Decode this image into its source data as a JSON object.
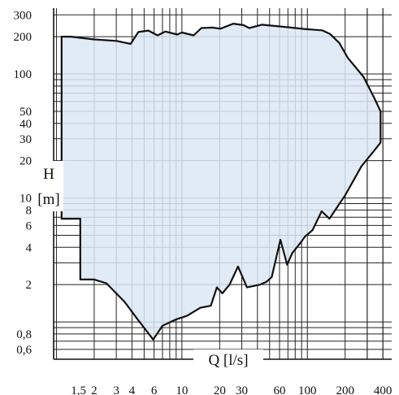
{
  "chart_data": {
    "type": "area",
    "x_scale": "log",
    "y_scale": "log",
    "xlabel": "Q [l/s]",
    "ylabel_top": "H",
    "ylabel_bottom": "[m]",
    "xlim": [
      0.95,
      470
    ],
    "ylim": [
      0.5,
      340
    ],
    "grid": true,
    "x_ticks": [
      {
        "value": 1.5,
        "label": "1,5"
      },
      {
        "value": 2,
        "label": "2"
      },
      {
        "value": 3,
        "label": "3"
      },
      {
        "value": 4,
        "label": "4"
      },
      {
        "value": 6,
        "label": "6"
      },
      {
        "value": 10,
        "label": "10"
      },
      {
        "value": 20,
        "label": "20"
      },
      {
        "value": 30,
        "label": "30"
      },
      {
        "value": 60,
        "label": "60"
      },
      {
        "value": 100,
        "label": "100"
      },
      {
        "value": 200,
        "label": "200"
      },
      {
        "value": 400,
        "label": "400"
      }
    ],
    "y_ticks": [
      {
        "value": 300,
        "label": "300"
      },
      {
        "value": 200,
        "label": "200"
      },
      {
        "value": 100,
        "label": "100"
      },
      {
        "value": 50,
        "label": "50"
      },
      {
        "value": 40,
        "label": "40"
      },
      {
        "value": 30,
        "label": "30"
      },
      {
        "value": 20,
        "label": "20"
      },
      {
        "value": 10,
        "label": "10"
      },
      {
        "value": 8,
        "label": "8"
      },
      {
        "value": 6,
        "label": "6"
      },
      {
        "value": 4,
        "label": "4"
      },
      {
        "value": 2,
        "label": "2"
      },
      {
        "value": 0.8,
        "label": "0,8"
      },
      {
        "value": 0.6,
        "label": "0,6"
      }
    ],
    "envelope": [
      [
        1.1,
        200
      ],
      [
        1.3,
        200
      ],
      [
        2,
        190
      ],
      [
        3,
        185
      ],
      [
        3.9,
        175
      ],
      [
        4.5,
        218
      ],
      [
        5.4,
        224
      ],
      [
        6.4,
        205
      ],
      [
        7.4,
        220
      ],
      [
        9.2,
        208
      ],
      [
        10,
        216
      ],
      [
        12.4,
        205
      ],
      [
        14.3,
        235
      ],
      [
        17.4,
        237
      ],
      [
        20.3,
        232
      ],
      [
        25.7,
        255
      ],
      [
        30.9,
        248
      ],
      [
        34.4,
        235
      ],
      [
        43.4,
        250
      ],
      [
        66,
        240
      ],
      [
        98,
        230
      ],
      [
        131,
        225
      ],
      [
        152,
        210
      ],
      [
        180,
        178
      ],
      [
        210,
        135
      ],
      [
        280,
        95
      ],
      [
        339,
        65
      ],
      [
        383,
        50
      ],
      [
        383,
        28
      ],
      [
        340,
        24
      ],
      [
        270,
        18
      ],
      [
        200,
        10.5
      ],
      [
        150,
        6.8
      ],
      [
        130,
        7.8
      ],
      [
        110,
        5.5
      ],
      [
        96,
        4.9
      ],
      [
        89,
        4.4
      ],
      [
        76,
        3.6
      ],
      [
        69,
        2.9
      ],
      [
        61,
        4.6
      ],
      [
        52,
        2.3
      ],
      [
        47,
        2.1
      ],
      [
        42,
        2.0
      ],
      [
        33,
        1.9
      ],
      [
        28,
        2.8
      ],
      [
        24,
        2.0
      ],
      [
        21,
        1.7
      ],
      [
        19,
        1.9
      ],
      [
        17,
        1.35
      ],
      [
        14,
        1.3
      ],
      [
        11,
        1.12
      ],
      [
        9,
        1.05
      ],
      [
        7,
        0.93
      ],
      [
        5.9,
        0.72
      ],
      [
        4.4,
        1.06
      ],
      [
        3.5,
        1.45
      ],
      [
        2.5,
        2.05
      ],
      [
        2,
        2.2
      ],
      [
        1.55,
        2.2
      ],
      [
        1.55,
        6.8
      ],
      [
        1.1,
        6.8
      ]
    ],
    "fill_color": "#dce8f3",
    "line_color": "#111111",
    "grid_color": "#222222"
  }
}
